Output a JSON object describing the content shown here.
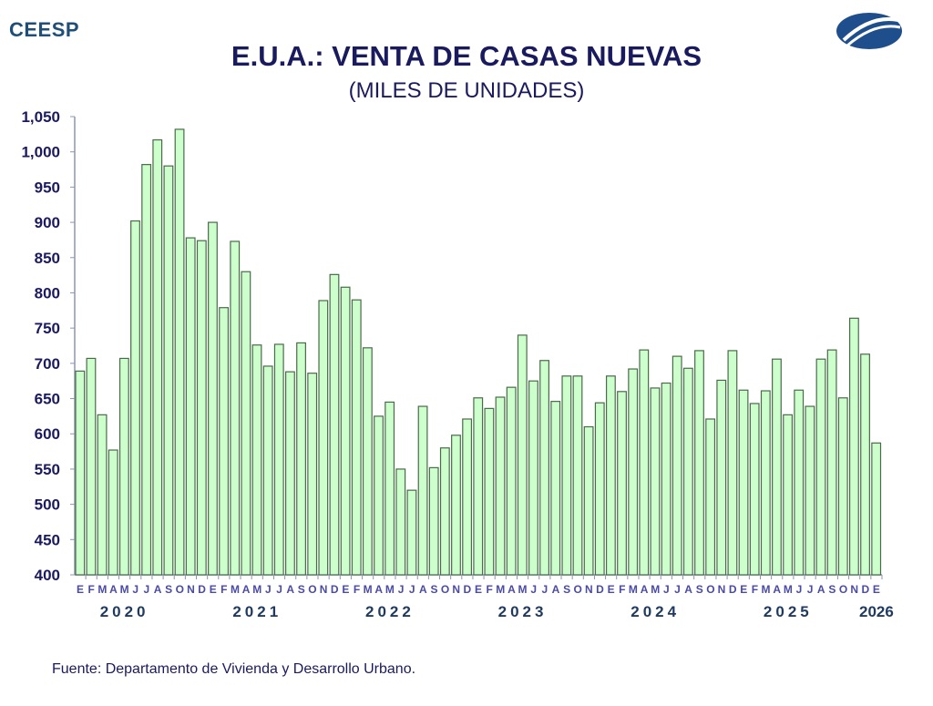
{
  "brand": "CEESP",
  "colors": {
    "bar_fill": "#ccffcc",
    "bar_stroke": "#4a6a4a",
    "text": "#1a1a5e",
    "axis": "#8c95b3"
  },
  "chart_data": {
    "type": "bar",
    "title": "E.U.A.: VENTA DE CASAS NUEVAS",
    "subtitle": "(MILES DE UNIDADES)",
    "ylim": [
      400,
      1050
    ],
    "yticks": [
      "400",
      "450",
      "500",
      "550",
      "600",
      "650",
      "700",
      "750",
      "800",
      "850",
      "900",
      "950",
      "1,000",
      "1,050"
    ],
    "grid": false,
    "month_labels": [
      "E",
      "F",
      "M",
      "A",
      "M",
      "J",
      "J",
      "A",
      "S",
      "O",
      "N",
      "D"
    ],
    "years": [
      "2020",
      "2021",
      "2022",
      "2023",
      "2024",
      "2025",
      "2026"
    ],
    "categories": [
      "2020-01",
      "2020-02",
      "2020-03",
      "2020-04",
      "2020-05",
      "2020-06",
      "2020-07",
      "2020-08",
      "2020-09",
      "2020-10",
      "2020-11",
      "2020-12",
      "2021-01",
      "2021-02",
      "2021-03",
      "2021-04",
      "2021-05",
      "2021-06",
      "2021-07",
      "2021-08",
      "2021-09",
      "2021-10",
      "2021-11",
      "2021-12",
      "2022-01",
      "2022-02",
      "2022-03",
      "2022-04",
      "2022-05",
      "2022-06",
      "2022-07",
      "2022-08",
      "2022-09",
      "2022-10",
      "2022-11",
      "2022-12",
      "2023-01",
      "2023-02",
      "2023-03",
      "2023-04",
      "2023-05",
      "2023-06",
      "2023-07",
      "2023-08",
      "2023-09",
      "2023-10",
      "2023-11",
      "2023-12",
      "2024-01",
      "2024-02",
      "2024-03",
      "2024-04",
      "2024-05",
      "2024-06",
      "2024-07",
      "2024-08",
      "2024-09",
      "2024-10",
      "2024-11",
      "2024-12",
      "2025-01",
      "2025-02",
      "2025-03",
      "2025-04",
      "2025-05",
      "2025-06",
      "2025-07",
      "2025-08",
      "2025-09",
      "2025-10",
      "2025-11",
      "2025-12",
      "2026-01"
    ],
    "values": [
      689,
      707,
      627,
      577,
      707,
      902,
      982,
      1017,
      980,
      1032,
      878,
      874,
      900,
      779,
      873,
      830,
      726,
      696,
      727,
      688,
      729,
      686,
      789,
      826,
      808,
      790,
      722,
      625,
      645,
      550,
      520,
      639,
      552,
      580,
      598,
      621,
      651,
      636,
      652,
      666,
      740,
      675,
      704,
      646,
      682,
      682,
      610,
      644,
      682,
      660,
      692,
      719,
      665,
      672,
      710,
      693,
      718,
      621,
      676,
      718,
      662,
      643,
      661,
      706,
      627,
      662,
      639,
      706,
      719,
      651,
      764,
      713,
      587
    ]
  },
  "source": "Fuente: Departamento de Vivienda y Desarrollo Urbano."
}
